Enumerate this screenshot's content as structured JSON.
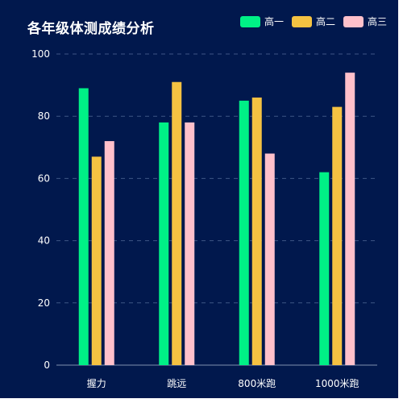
{
  "chart_data": {
    "type": "bar",
    "title": "各年级体测成绩分析",
    "categories": [
      "握力",
      "跳远",
      "800米跑",
      "1000米跑"
    ],
    "series": [
      {
        "name": "高一",
        "color": "#00f086",
        "values": [
          89,
          78,
          85,
          62
        ]
      },
      {
        "name": "高二",
        "color": "#f5c242",
        "values": [
          67,
          91,
          86,
          83
        ]
      },
      {
        "name": "高三",
        "color": "#ffc0cb",
        "values": [
          72,
          78,
          68,
          94
        ]
      }
    ],
    "xlabel": "",
    "ylabel": "",
    "ylim": [
      0,
      100
    ],
    "yticks": [
      0,
      20,
      40,
      60,
      80,
      100
    ],
    "grid": true,
    "legend_position": "top-right"
  }
}
